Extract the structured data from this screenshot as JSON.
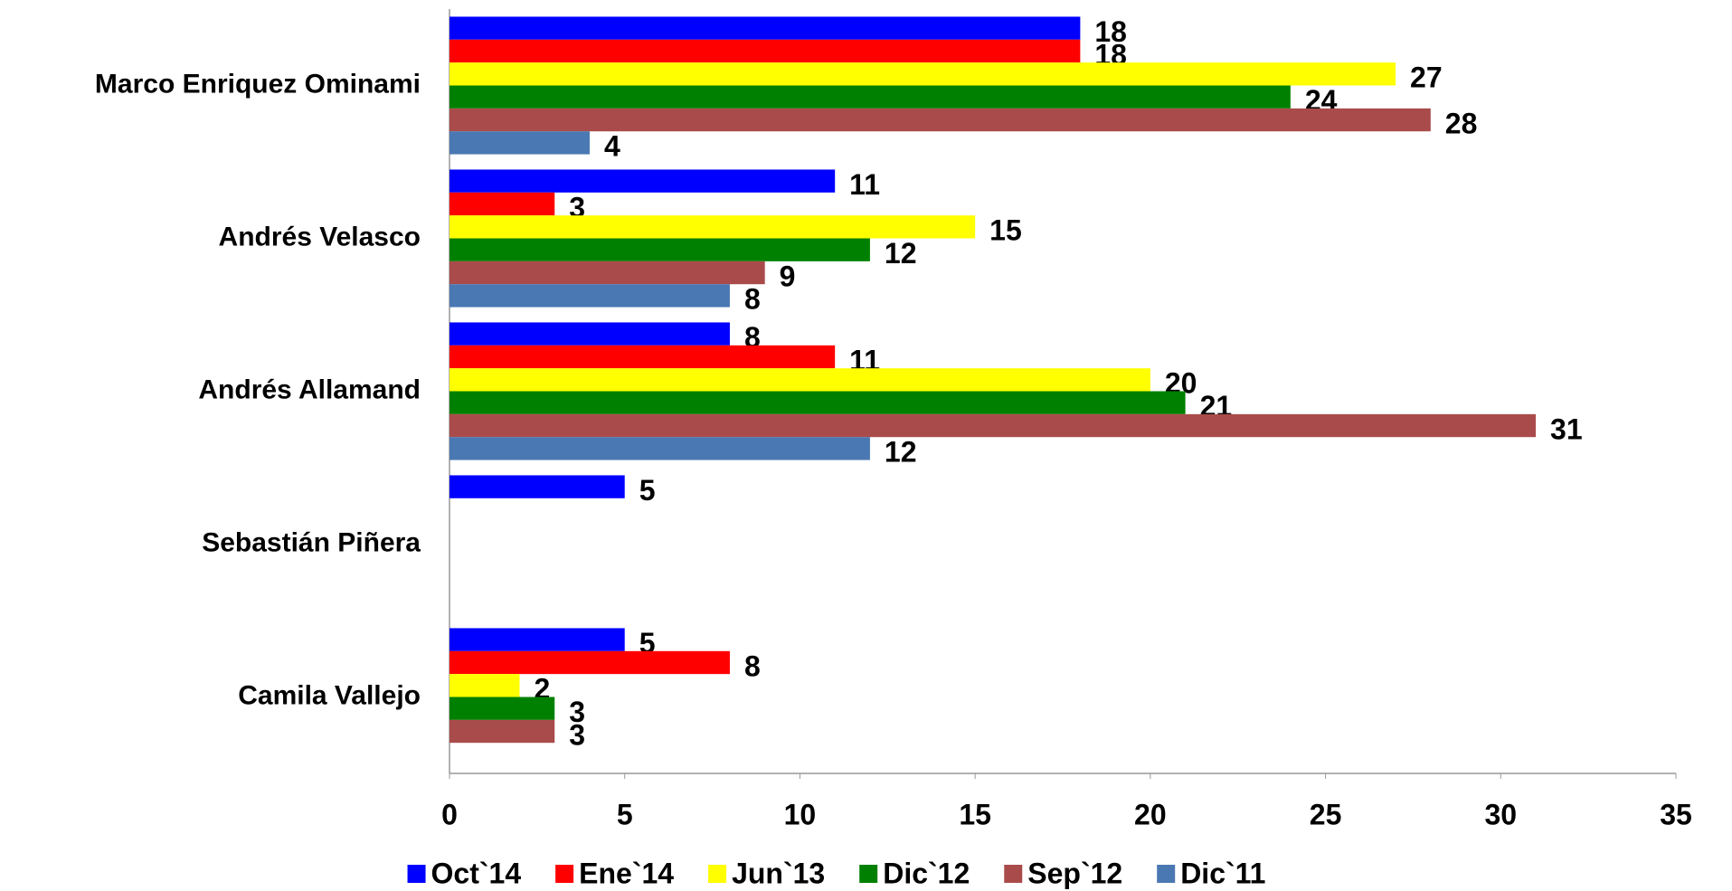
{
  "chart_data": {
    "type": "barh",
    "categories": [
      "Marco Enriquez Ominami",
      "Andrés Velasco",
      "Andrés Allamand",
      "Sebastián Piñera",
      "Camila Vallejo"
    ],
    "series": [
      {
        "name": "Oct`14",
        "color": "#0000ff",
        "values": [
          18,
          11,
          8,
          5,
          5
        ]
      },
      {
        "name": "Ene`14",
        "color": "#ff0000",
        "values": [
          18,
          3,
          11,
          null,
          8
        ]
      },
      {
        "name": "Jun`13",
        "color": "#ffff00",
        "values": [
          27,
          15,
          20,
          null,
          2
        ]
      },
      {
        "name": "Dic`12",
        "color": "#008000",
        "values": [
          24,
          12,
          21,
          null,
          3
        ]
      },
      {
        "name": "Sep`12",
        "color": "#aa4b4b",
        "values": [
          28,
          9,
          31,
          null,
          3
        ]
      },
      {
        "name": "Dic`11",
        "color": "#4a78b2",
        "values": [
          4,
          8,
          12,
          null,
          null
        ]
      }
    ],
    "xlim": [
      0,
      35
    ],
    "xticks": [
      0,
      5,
      10,
      15,
      20,
      25,
      30,
      35
    ],
    "grid": false,
    "legend": "bottom"
  }
}
